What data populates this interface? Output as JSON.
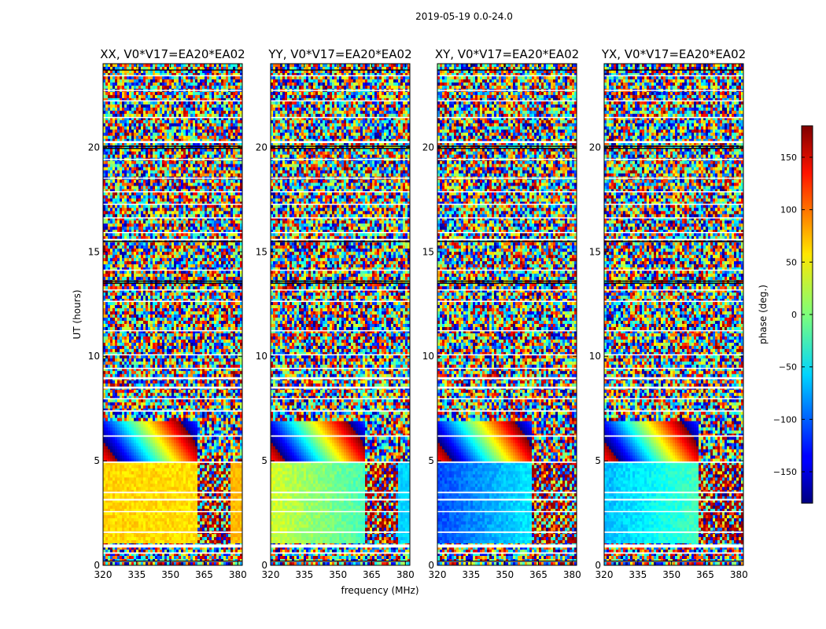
{
  "chart_data": {
    "type": "heatmap",
    "suptitle": "2019-05-19 0.0-24.0",
    "xlabel": "frequency (MHz)",
    "ylabel": "UT (hours)",
    "xlim": [
      320,
      382
    ],
    "ylim": [
      0,
      24
    ],
    "x_ticks": [
      "320",
      "335",
      "350",
      "365",
      "380"
    ],
    "y_ticks": [
      "0",
      "5",
      "10",
      "15",
      "20"
    ],
    "colorbar": {
      "label": "phase (deg.)",
      "range": [
        -180,
        180
      ],
      "ticks": [
        "150",
        "100",
        "50",
        "0",
        "−50",
        "−100",
        "−150"
      ],
      "tick_values": [
        150,
        100,
        50,
        0,
        -50,
        -100,
        -150
      ],
      "colormap": "jet"
    },
    "panels": [
      {
        "title": "XX, V0*V17=EA20*EA02",
        "polarization": "XX",
        "low_band_phase_deg": 60,
        "mid_band_phase_deg": 55
      },
      {
        "title": "YY, V0*V17=EA20*EA02",
        "polarization": "YY",
        "low_band_phase_deg": 30,
        "mid_band_phase_deg": -20
      },
      {
        "title": "XY, V0*V17=EA20*EA02",
        "polarization": "XY",
        "low_band_phase_deg": -110,
        "mid_band_phase_deg": -50
      },
      {
        "title": "YX, V0*V17=EA20*EA02",
        "polarization": "YX",
        "low_band_phase_deg": -70,
        "mid_band_phase_deg": -20
      }
    ]
  }
}
